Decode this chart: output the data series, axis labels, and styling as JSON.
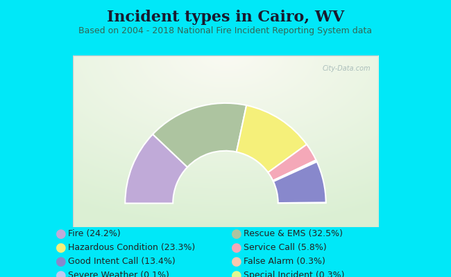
{
  "title": "Incident types in Cairo, WV",
  "subtitle": "Based on 2004 - 2018 National Fire Incident Reporting System data",
  "bg_color": "#00e8f8",
  "chart_bg_color": "#e8f5ee",
  "chart_border_color": "#cccccc",
  "segments_draw_order": [
    {
      "label": "Fire (24.2%)",
      "value": 24.2,
      "color": "#c0aad8"
    },
    {
      "label": "Rescue & EMS (32.5%)",
      "value": 32.5,
      "color": "#adc4a0"
    },
    {
      "label": "Hazardous Condition (23.3%)",
      "value": 23.3,
      "color": "#f5f07a"
    },
    {
      "label": "Service Call (5.8%)",
      "value": 5.8,
      "color": "#f4a8b8"
    },
    {
      "label": "False Alarm (0.3%)",
      "value": 0.3,
      "color": "#f8c8b0"
    },
    {
      "label": "Special Incident (0.3%)",
      "value": 0.3,
      "color": "#e0f890"
    },
    {
      "label": "Good Intent Call (13.4%)",
      "value": 13.4,
      "color": "#8888cc"
    },
    {
      "label": "Severe Weather (0.1%)",
      "value": 0.1,
      "color": "#c0c8f0"
    }
  ],
  "legend_order": [
    {
      "label": "Fire (24.2%)",
      "color": "#c0aad8"
    },
    {
      "label": "Rescue & EMS (32.5%)",
      "color": "#adc4a0"
    },
    {
      "label": "Hazardous Condition (23.3%)",
      "color": "#f5f07a"
    },
    {
      "label": "Service Call (5.8%)",
      "color": "#f4a8b8"
    },
    {
      "label": "Good Intent Call (13.4%)",
      "color": "#8888cc"
    },
    {
      "label": "False Alarm (0.3%)",
      "color": "#f8c8b0"
    },
    {
      "label": "Severe Weather (0.1%)",
      "color": "#c0c8f0"
    },
    {
      "label": "Special Incident (0.3%)",
      "color": "#e0f890"
    }
  ],
  "outer_r": 1.05,
  "inner_r": 0.55,
  "title_fontsize": 16,
  "subtitle_fontsize": 9,
  "legend_fontsize": 9,
  "watermark": "City-Data.com"
}
